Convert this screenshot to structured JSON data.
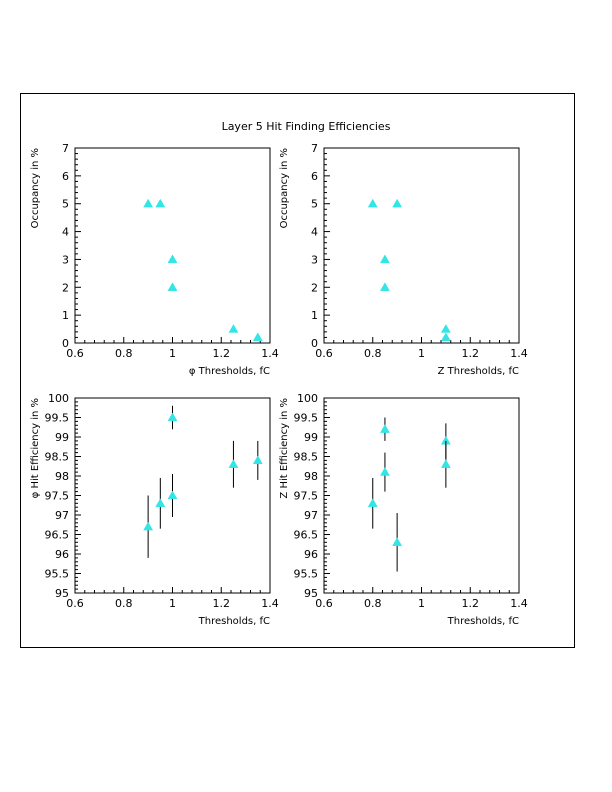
{
  "title": "Layer 5 Hit Finding Efficiencies",
  "marker_color": "#33e5e5",
  "chart_data": [
    {
      "type": "scatter",
      "xlabel": "φ Thresholds, fC",
      "ylabel": "Occupancy in %",
      "xlim": [
        0.6,
        1.4
      ],
      "ylim": [
        0,
        7
      ],
      "xticks": [
        0.6,
        0.8,
        1,
        1.2,
        1.4
      ],
      "yticks": [
        0,
        1,
        2,
        3,
        4,
        5,
        6,
        7
      ],
      "points": [
        {
          "x": 0.9,
          "y": 5
        },
        {
          "x": 0.95,
          "y": 5
        },
        {
          "x": 1.0,
          "y": 3
        },
        {
          "x": 1.0,
          "y": 2
        },
        {
          "x": 1.25,
          "y": 0.5
        },
        {
          "x": 1.35,
          "y": 0.2
        }
      ]
    },
    {
      "type": "scatter",
      "xlabel": "Z Thresholds, fC",
      "ylabel": "Occupancy in %",
      "xlim": [
        0.6,
        1.4
      ],
      "ylim": [
        0,
        7
      ],
      "xticks": [
        0.6,
        0.8,
        1,
        1.2,
        1.4
      ],
      "yticks": [
        0,
        1,
        2,
        3,
        4,
        5,
        6,
        7
      ],
      "points": [
        {
          "x": 0.8,
          "y": 5
        },
        {
          "x": 0.9,
          "y": 5
        },
        {
          "x": 0.85,
          "y": 3
        },
        {
          "x": 0.85,
          "y": 2
        },
        {
          "x": 1.1,
          "y": 0.5
        },
        {
          "x": 1.1,
          "y": 0.2
        }
      ]
    },
    {
      "type": "scatter",
      "xlabel": "Thresholds, fC",
      "ylabel": "φ Hit Efficiency in %",
      "xlim": [
        0.6,
        1.4
      ],
      "ylim": [
        95,
        100
      ],
      "xticks": [
        0.6,
        0.8,
        1,
        1.2,
        1.4
      ],
      "yticks": [
        95,
        95.5,
        96,
        96.5,
        97,
        97.5,
        98,
        98.5,
        99,
        99.5,
        100
      ],
      "points": [
        {
          "x": 0.9,
          "y": 96.7,
          "err": 0.8
        },
        {
          "x": 0.95,
          "y": 97.3,
          "err": 0.65
        },
        {
          "x": 1.0,
          "y": 97.5,
          "err": 0.55
        },
        {
          "x": 1.0,
          "y": 99.5,
          "err": 0.3
        },
        {
          "x": 1.25,
          "y": 98.3,
          "err": 0.6
        },
        {
          "x": 1.35,
          "y": 98.4,
          "err": 0.5
        }
      ]
    },
    {
      "type": "scatter",
      "xlabel": "Thresholds, fC",
      "ylabel": "Z Hit Efficiency in %",
      "xlim": [
        0.6,
        1.4
      ],
      "ylim": [
        95,
        100
      ],
      "xticks": [
        0.6,
        0.8,
        1,
        1.2,
        1.4
      ],
      "yticks": [
        95,
        95.5,
        96,
        96.5,
        97,
        97.5,
        98,
        98.5,
        99,
        99.5,
        100
      ],
      "points": [
        {
          "x": 0.8,
          "y": 97.3,
          "err": 0.65
        },
        {
          "x": 0.85,
          "y": 98.1,
          "err": 0.5
        },
        {
          "x": 0.85,
          "y": 99.2,
          "err": 0.3
        },
        {
          "x": 0.9,
          "y": 96.3,
          "err": 0.75
        },
        {
          "x": 1.1,
          "y": 98.9,
          "err": 0.45
        },
        {
          "x": 1.1,
          "y": 98.3,
          "err": 0.6
        }
      ]
    }
  ]
}
